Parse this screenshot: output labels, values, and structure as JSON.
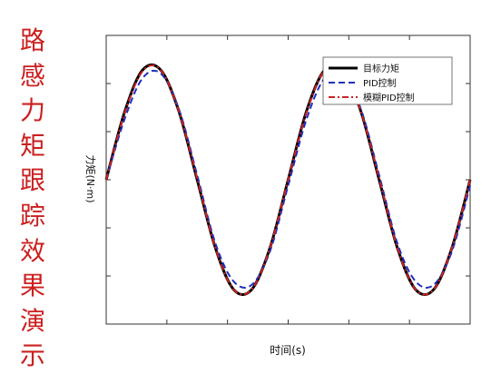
{
  "side_title": [
    "路",
    "感",
    "力",
    "矩",
    "跟",
    "踪",
    "效",
    "果",
    "演",
    "示"
  ],
  "chart_data": {
    "type": "line",
    "xlabel": "时间(s)",
    "ylabel": "力矩(N·m)",
    "x": [
      0,
      0.5,
      1,
      1.5,
      2,
      2.5,
      3,
      3.5,
      4,
      4.5,
      5,
      5.5,
      6,
      6.5,
      7,
      7.5,
      8,
      8.5,
      9,
      9.5,
      10
    ],
    "xlim": [
      0,
      10
    ],
    "ylim": [
      -1.25,
      1.25
    ],
    "grid": false,
    "legend_position": "top-right",
    "series": [
      {
        "name": "目标力矩",
        "color": "#000000",
        "dash": "solid",
        "values": [
          0,
          0.58,
          0.95,
          0.95,
          0.59,
          0.0,
          -0.59,
          -0.95,
          -0.95,
          -0.59,
          0.0,
          0.59,
          0.95,
          0.95,
          0.59,
          0.0,
          -0.59,
          -0.95,
          -0.95,
          -0.59,
          0.0
        ]
      },
      {
        "name": "PID控制",
        "color": "#1f2fbf",
        "dash": "dashed",
        "values": [
          0,
          0.52,
          0.88,
          0.92,
          0.61,
          0.04,
          -0.55,
          -0.88,
          -0.91,
          -0.62,
          -0.05,
          0.52,
          0.88,
          0.92,
          0.61,
          0.04,
          -0.55,
          -0.88,
          -0.91,
          -0.62,
          -0.05
        ]
      },
      {
        "name": "模糊PID控制",
        "color": "#cc2222",
        "dash": "dashdot",
        "values": [
          0,
          0.57,
          0.94,
          0.95,
          0.59,
          0.01,
          -0.59,
          -0.95,
          -0.95,
          -0.59,
          0.0,
          0.58,
          0.95,
          0.95,
          0.59,
          0.01,
          -0.59,
          -0.95,
          -0.95,
          -0.59,
          0.0
        ]
      }
    ]
  }
}
